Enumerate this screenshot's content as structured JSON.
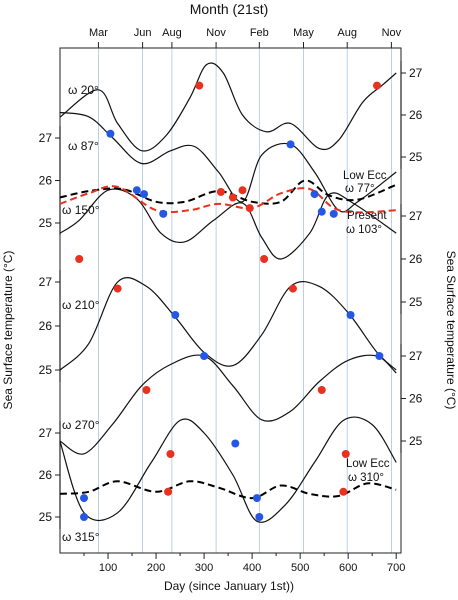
{
  "chart_data": {
    "type": "line",
    "top_axis_title": "Month (21st)",
    "top_ticks": [
      "Mar",
      "Jun",
      "Aug",
      "Nov",
      "Feb",
      "May",
      "Aug",
      "Nov"
    ],
    "xlabel": "Day (since  January 1st))",
    "ylabel_left": "Sea Surface temperature (°C)",
    "ylabel_right": "Sea Surface temperature (°C)",
    "xlim": [
      0,
      710
    ],
    "x_ticks": [
      100,
      200,
      300,
      400,
      500,
      600,
      700
    ],
    "month_gridlines_day": [
      80,
      172,
      233,
      325,
      415,
      507,
      598,
      690
    ],
    "panel_tick_labels": {
      "left_upper": [
        "27",
        "26",
        "25"
      ],
      "right_upper": [
        "27",
        "26",
        "25"
      ],
      "right_middle": [
        "27",
        "26",
        "25"
      ],
      "left_middle": [
        "27",
        "26",
        "25"
      ],
      "right_lower": [
        "27",
        "26",
        "25"
      ],
      "left_lower": [
        "27",
        "26",
        "25"
      ]
    },
    "curve_labels": [
      "ω 20°",
      "ω 87°",
      "ω 150°",
      "ω 210°",
      "ω 270°",
      "ω 315°"
    ],
    "series": [
      {
        "name": "ω 20°",
        "axis": "right_upper",
        "x": [
          0,
          80,
          120,
          170,
          220,
          270,
          305,
          340,
          380,
          430,
          480,
          540,
          580,
          630,
          670,
          700
        ],
        "y": [
          25.95,
          26.6,
          25.8,
          25.15,
          25.5,
          26.4,
          27.2,
          27.0,
          26.0,
          25.6,
          25.8,
          25.2,
          25.4,
          26.3,
          26.7,
          27.0
        ],
        "markers": [
          {
            "day": 290,
            "value": 26.7,
            "color": "#e8311f"
          },
          {
            "day": 660,
            "value": 26.7,
            "color": "#e8311f"
          }
        ]
      },
      {
        "name": "ω 87°",
        "axis": "left_upper",
        "x": [
          0,
          60,
          110,
          170,
          230,
          280,
          330,
          380,
          420,
          480,
          530,
          580,
          620,
          700
        ],
        "y": [
          27.6,
          27.5,
          27.0,
          26.4,
          26.7,
          26.8,
          26.2,
          25.5,
          26.6,
          26.85,
          26.2,
          25.3,
          25.5,
          26.2
        ],
        "markers": [
          {
            "day": 105,
            "value": 27.1,
            "color": "#2457e6"
          },
          {
            "day": 360,
            "value": 25.6,
            "color": "#e8311f"
          },
          {
            "day": 480,
            "value": 26.85,
            "color": "#2457e6"
          }
        ]
      },
      {
        "name": "ω 150°",
        "axis": "right_middle",
        "x": [
          0,
          40,
          100,
          160,
          210,
          260,
          320,
          380,
          420,
          460,
          520,
          560,
          610,
          700
        ],
        "y": [
          26.6,
          26.9,
          27.6,
          27.4,
          26.6,
          26.4,
          26.9,
          27.3,
          26.5,
          26.0,
          26.6,
          27.5,
          27.3,
          26.6
        ],
        "markers": [
          {
            "day": 40,
            "value": 26.0,
            "color": "#e8311f"
          },
          {
            "day": 160,
            "value": 27.6,
            "color": "#2457e6"
          },
          {
            "day": 215,
            "value": 27.05,
            "color": "#2457e6"
          },
          {
            "day": 380,
            "value": 27.6,
            "color": "#e8311f"
          },
          {
            "day": 425,
            "value": 26.0,
            "color": "#e8311f"
          },
          {
            "day": 545,
            "value": 27.1,
            "color": "#2457e6"
          },
          {
            "day": 570,
            "value": 27.05,
            "color": "#2457e6"
          }
        ]
      },
      {
        "name": "ω 210°",
        "axis": "left_middle",
        "x": [
          0,
          60,
          120,
          180,
          240,
          300,
          360,
          420,
          480,
          540,
          600,
          660,
          700
        ],
        "y": [
          25.0,
          25.6,
          27.0,
          26.9,
          26.2,
          25.4,
          25.1,
          25.8,
          26.9,
          26.9,
          26.3,
          25.4,
          25.0
        ],
        "markers": [
          {
            "day": 120,
            "value": 26.85,
            "color": "#e8311f"
          },
          {
            "day": 240,
            "value": 26.25,
            "color": "#2457e6"
          },
          {
            "day": 485,
            "value": 26.85,
            "color": "#e8311f"
          },
          {
            "day": 605,
            "value": 26.25,
            "color": "#2457e6"
          }
        ]
      },
      {
        "name": "ω 270°",
        "axis": "right_lower",
        "x": [
          0,
          50,
          110,
          170,
          230,
          300,
          360,
          420,
          480,
          540,
          600,
          660,
          700
        ],
        "y": [
          25.0,
          24.7,
          25.4,
          26.3,
          26.8,
          27.0,
          26.3,
          25.5,
          25.7,
          26.4,
          26.9,
          27.0,
          26.6
        ],
        "markers": [
          {
            "day": 180,
            "value": 26.2,
            "color": "#e8311f"
          },
          {
            "day": 300,
            "value": 27.0,
            "color": "#2457e6"
          },
          {
            "day": 545,
            "value": 26.2,
            "color": "#e8311f"
          },
          {
            "day": 665,
            "value": 27.0,
            "color": "#2457e6"
          }
        ]
      },
      {
        "name": "ω 315°",
        "axis": "left_lower",
        "x": [
          0,
          50,
          120,
          190,
          250,
          300,
          360,
          410,
          470,
          530,
          590,
          650,
          700
        ],
        "y": [
          26.8,
          25.1,
          25.1,
          26.3,
          27.3,
          27.0,
          26.0,
          24.9,
          25.3,
          26.3,
          27.3,
          27.2,
          26.3
        ],
        "markers": [
          {
            "day": 50,
            "value": 25.0,
            "color": "#2457e6"
          },
          {
            "day": 230,
            "value": 26.5,
            "color": "#e8311f"
          },
          {
            "day": 365,
            "value": 26.75,
            "color": "#2457e6"
          },
          {
            "day": 415,
            "value": 25.0,
            "color": "#2457e6"
          },
          {
            "day": 595,
            "value": 26.5,
            "color": "#e8311f"
          }
        ]
      }
    ],
    "reference_series": [
      {
        "name": "Low Ecc ω 77°",
        "label_line1": "Low Ecc",
        "label_line2": "ω  77°",
        "color": "#000000",
        "axis": "left_upper",
        "x": [
          0,
          60,
          130,
          200,
          260,
          330,
          400,
          460,
          510,
          560,
          620,
          700
        ],
        "y": [
          25.6,
          25.75,
          25.8,
          25.5,
          25.5,
          25.75,
          25.5,
          25.5,
          26.0,
          25.65,
          25.55,
          25.9
        ],
        "markers": [
          {
            "day": 175,
            "value": 25.68,
            "color": "#2457e6"
          },
          {
            "day": 335,
            "value": 25.73,
            "color": "#e8311f"
          },
          {
            "day": 530,
            "value": 25.68,
            "color": "#2457e6"
          }
        ]
      },
      {
        "name": "Present ω 103°",
        "label_line1": "Present",
        "label_line2": "ω 103°",
        "color": "#e8311f",
        "axis": "left_upper",
        "x": [
          0,
          60,
          120,
          200,
          270,
          330,
          400,
          460,
          520,
          570,
          620,
          700
        ],
        "y": [
          25.45,
          25.7,
          25.85,
          25.3,
          25.3,
          25.45,
          25.35,
          25.7,
          25.8,
          25.35,
          25.25,
          25.3
        ],
        "markers": [
          {
            "day": 395,
            "value": 25.35,
            "color": "#e8311f"
          }
        ]
      },
      {
        "name": "Low Ecc ω 310°",
        "label_line1": "Low Ecc",
        "label_line2": "ω  310°",
        "color": "#000000",
        "axis": "left_lower",
        "x": [
          0,
          60,
          120,
          200,
          270,
          330,
          400,
          460,
          520,
          580,
          640,
          700
        ],
        "y": [
          25.55,
          25.6,
          25.85,
          25.6,
          25.85,
          25.7,
          25.45,
          25.75,
          25.55,
          25.5,
          25.8,
          25.65
        ],
        "markers": [
          {
            "day": 50,
            "value": 25.45,
            "color": "#2457e6"
          },
          {
            "day": 225,
            "value": 25.6,
            "color": "#e8311f"
          },
          {
            "day": 410,
            "value": 25.45,
            "color": "#2457e6"
          },
          {
            "day": 590,
            "value": 25.6,
            "color": "#e8311f"
          }
        ]
      }
    ],
    "grid": "vertical month lines"
  }
}
